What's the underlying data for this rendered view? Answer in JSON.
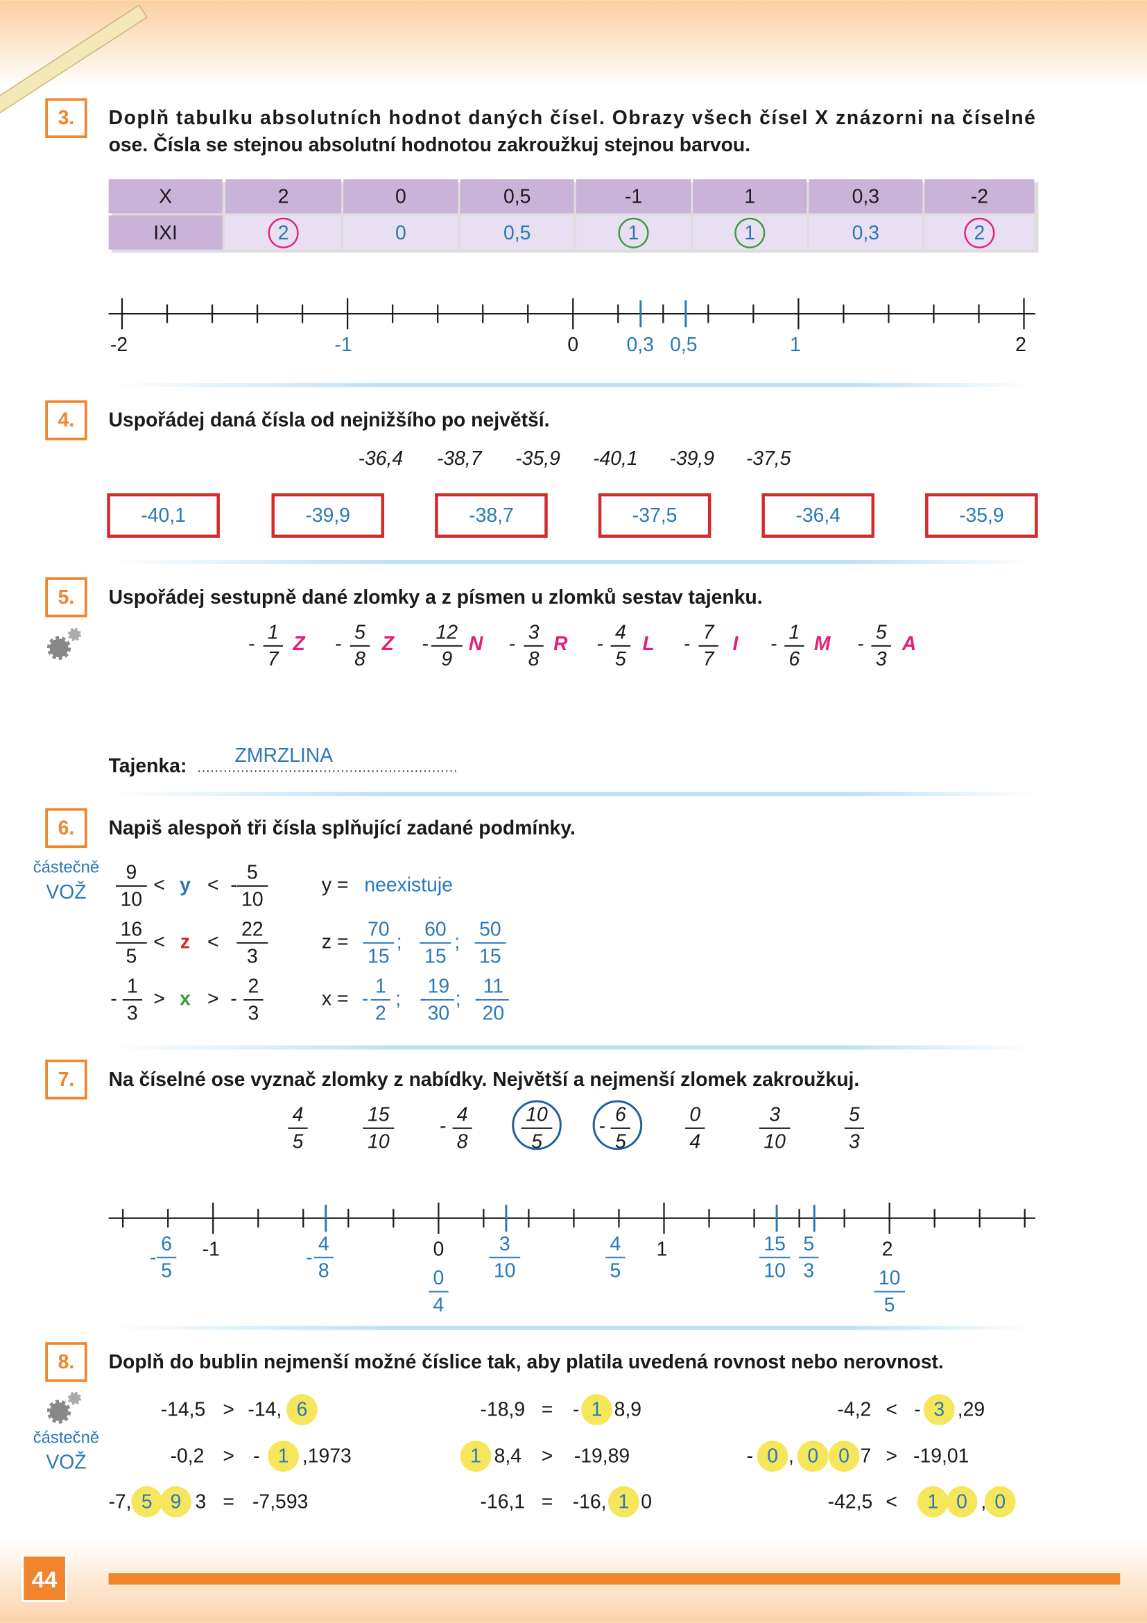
{
  "exercises": [
    {
      "number": "3.",
      "instruction": [
        "Doplň tabulku absolutních hodnot daných čísel. Obrazy všech čísel X znázorni na číselné",
        "ose. Čísla se stejnou absolutní hodnotou zakroužkuj stejnou barvou."
      ],
      "table": {
        "rows": [
          [
            "X",
            "2",
            "0",
            "0,5",
            "-1",
            "1",
            "0,3",
            "-2"
          ],
          [
            "IXI",
            "2",
            "0",
            "0,5",
            "1",
            "1",
            "0,3",
            "2"
          ]
        ]
      },
      "number_line": [
        "-2",
        "-1",
        "0",
        "0,3",
        "0,5",
        "1",
        "2"
      ]
    },
    {
      "number": "4.",
      "instruction": [
        "Uspořádej daná čísla od nejnižšího po největší."
      ],
      "given": [
        "-36,4",
        "-38,7",
        "-35,9",
        "-40,1",
        "-39,9",
        "-37,5"
      ],
      "answers": [
        "-40,1",
        "-39,9",
        "-38,7",
        "-37,5",
        "-36,4",
        "-35,9"
      ]
    },
    {
      "number": "5.",
      "instruction": [
        "Uspořádej sestupně dané zlomky a z písmen u zlomků sestav tajenku."
      ],
      "fractions": [
        {
          "sign": "-",
          "numerator": "1",
          "denominator": "7",
          "letter": "Z"
        },
        {
          "sign": "-",
          "numerator": "5",
          "denominator": "8",
          "letter": "Z"
        },
        {
          "sign": "-",
          "numerator": "12",
          "denominator": "9",
          "letter": "N"
        },
        {
          "sign": "-",
          "numerator": "3",
          "denominator": "8",
          "letter": "R"
        },
        {
          "sign": "-",
          "numerator": "4",
          "denominator": "5",
          "letter": "L"
        },
        {
          "sign": "-",
          "numerator": "7",
          "denominator": "7",
          "letter": "I"
        },
        {
          "sign": "-",
          "numerator": "1",
          "denominator": "6",
          "letter": "M"
        },
        {
          "sign": "-",
          "numerator": "5",
          "denominator": "3",
          "letter": "A"
        }
      ],
      "solution_label": "Tajenka:",
      "solution": "ZMRZLINA"
    },
    {
      "number": "6.",
      "note": [
        "částečně",
        "VOŽ"
      ],
      "instruction": [
        "Napiš alespoň tři čísla splňující zadané podmínky."
      ],
      "rows": [
        {
          "condition": [
            {
              "numerator": "9",
              "denominator": "10"
            },
            "<",
            "y",
            "<",
            "-",
            {
              "numerator": "5",
              "denominator": "10"
            }
          ],
          "answer": [
            "y =",
            "neexistuje"
          ]
        },
        {
          "condition": [
            {
              "numerator": "16",
              "denominator": "5"
            },
            "<",
            "z",
            "<",
            {
              "numerator": "22",
              "denominator": "3"
            }
          ],
          "answer": [
            "z =",
            {
              "numerator": "70",
              "denominator": "15"
            },
            ";",
            {
              "numerator": "60",
              "denominator": "15"
            },
            ";",
            {
              "numerator": "50",
              "denominator": "15"
            }
          ]
        },
        {
          "condition": [
            "-",
            {
              "numerator": "1",
              "denominator": "3"
            },
            ">",
            "x",
            ">",
            "-",
            {
              "numerator": "2",
              "denominator": "3"
            }
          ],
          "answer": [
            "x =",
            "-",
            {
              "numerator": "1",
              "denominator": "2"
            },
            ";",
            "-",
            {
              "numerator": "19",
              "denominator": "30"
            },
            ";",
            "-",
            {
              "numerator": "11",
              "denominator": "20"
            }
          ]
        }
      ]
    },
    {
      "number": "7.",
      "instruction": [
        "Na číselné ose vyznač zlomky z nabídky. Největší a nejmenší zlomek zakroužkuj."
      ],
      "fractions": [
        {
          "numerator": "4",
          "denominator": "5"
        },
        {
          "numerator": "15",
          "denominator": "10"
        },
        {
          "sign": "-",
          "numerator": "4",
          "denominator": "8"
        },
        {
          "numerator": "10",
          "denominator": "5"
        },
        {
          "sign": "-",
          "numerator": "6",
          "denominator": "5"
        },
        {
          "numerator": "0",
          "denominator": "4"
        },
        {
          "numerator": "3",
          "denominator": "10"
        },
        {
          "numerator": "5",
          "denominator": "3"
        }
      ],
      "number_line": {
        "integers": [
          "-1",
          "0",
          "1",
          "2"
        ],
        "marked": [
          {
            "sign": "-",
            "numerator": "6",
            "denominator": "5"
          },
          {
            "sign": "-",
            "numerator": "4",
            "denominator": "8"
          },
          {
            "numerator": "0",
            "denominator": "4"
          },
          {
            "numerator": "3",
            "denominator": "10"
          },
          {
            "numerator": "4",
            "denominator": "5"
          },
          {
            "numerator": "15",
            "denominator": "10"
          },
          {
            "numerator": "5",
            "denominator": "3"
          },
          {
            "numerator": "10",
            "denominator": "5"
          }
        ]
      }
    },
    {
      "number": "8.",
      "note": [
        "částečně",
        "VOŽ"
      ],
      "instruction": [
        "Doplň do bublin nejmenší možné číslice tak, aby platila uvedená rovnost nebo nerovnost."
      ],
      "rows": [
        [
          [
            "-14,5",
            ">",
            "-14,",
            {
              "bubble": "6"
            }
          ],
          [
            "-18,9",
            "=",
            "-",
            {
              "bubble": "1"
            },
            "8,9"
          ],
          [
            "-4,2",
            "<",
            "-",
            {
              "bubble": "3"
            },
            ",29"
          ]
        ],
        [
          [
            "-0,2",
            ">",
            "-",
            {
              "bubble": "1"
            },
            ",1973"
          ],
          [
            {
              "bubble": "1"
            },
            "8,4",
            ">",
            "-19,89"
          ],
          [
            "-",
            {
              "bubble": "0"
            },
            ",",
            {
              "bubble": "0"
            },
            {
              "bubble": "0"
            },
            "7",
            ">",
            "-19,01"
          ]
        ],
        [
          [
            "-7,",
            {
              "bubble": "5"
            },
            {
              "bubble": "9"
            },
            "3",
            "=",
            "-7,593"
          ],
          [
            "-16,1",
            "=",
            "-16,",
            {
              "bubble": "1"
            },
            "0"
          ],
          [
            "-42,5",
            "<",
            {
              "bubble": "1"
            },
            {
              "bubble": "0"
            },
            ",",
            {
              "bubble": "0"
            }
          ]
        ]
      ]
    }
  ],
  "page_number": "44"
}
